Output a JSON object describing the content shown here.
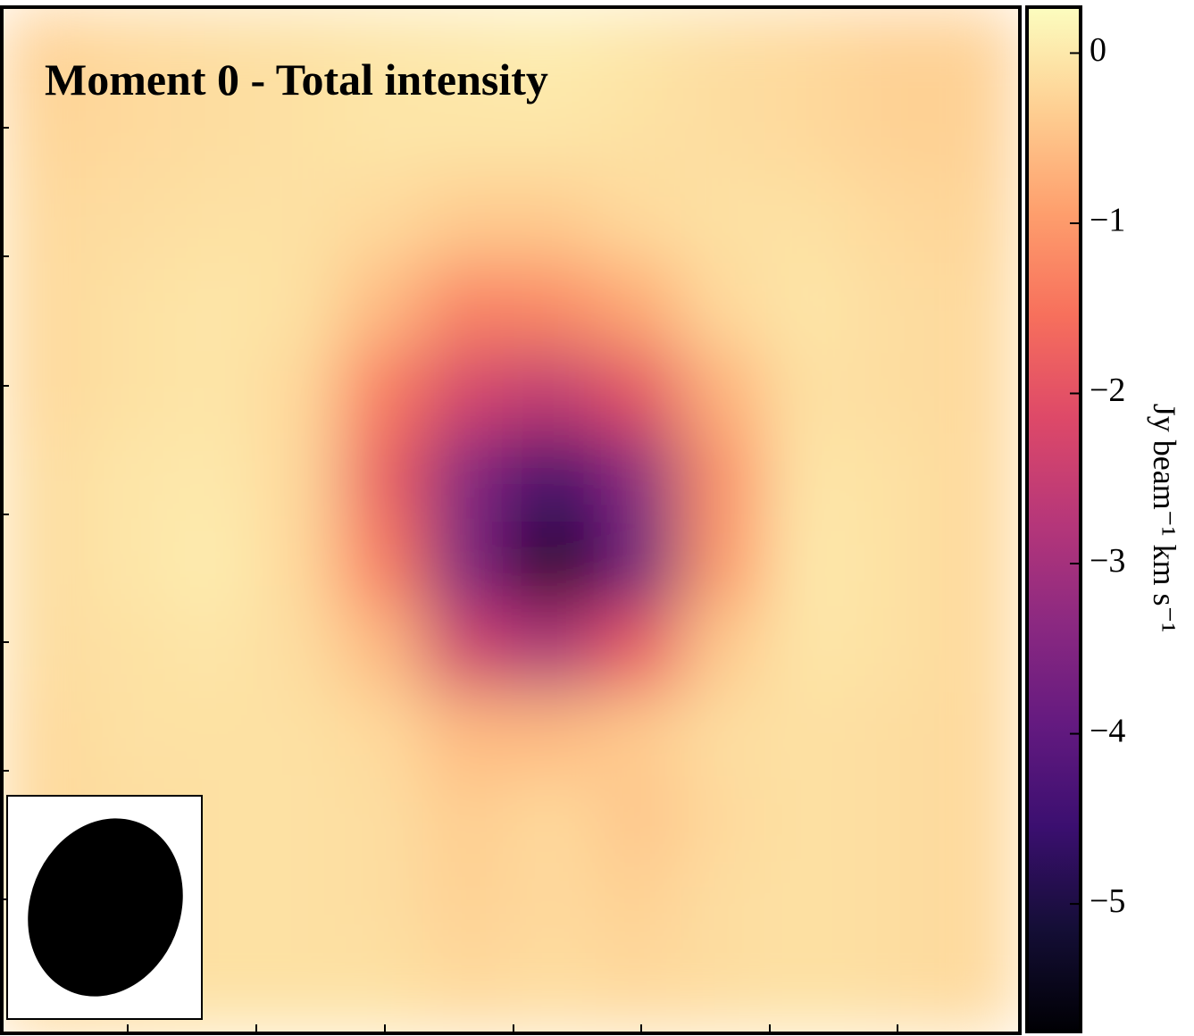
{
  "chart_data": {
    "type": "heatmap",
    "title": "Moment 0 - Total intensity",
    "colormap": "magma",
    "values": [
      [
        -0.3,
        -0.2,
        -0.15,
        -0.1,
        -0.05,
        0,
        0.05,
        -0.05,
        -0.15,
        -0.2,
        -0.3,
        -0.3
      ],
      [
        -0.25,
        -0.2,
        -0.15,
        -0.1,
        -0.05,
        -0.05,
        -0.05,
        -0.1,
        -0.15,
        -0.2,
        -0.3,
        -0.3
      ],
      [
        -0.2,
        -0.15,
        -0.1,
        -0.1,
        -0.2,
        -0.4,
        -0.4,
        -0.2,
        -0.1,
        -0.1,
        -0.2,
        -0.25
      ],
      [
        -0.2,
        -0.1,
        -0.05,
        -0.1,
        -0.6,
        -1.3,
        -1.2,
        -0.8,
        -0.2,
        -0.05,
        -0.15,
        -0.2
      ],
      [
        -0.2,
        -0.1,
        -0.05,
        -0.2,
        -1.4,
        -2.3,
        -2.6,
        -2.0,
        -0.7,
        -0.1,
        -0.15,
        -0.2
      ],
      [
        -0.15,
        -0.05,
        0,
        -0.2,
        -1.8,
        -3.5,
        -4.6,
        -3.4,
        -1.1,
        -0.05,
        -0.1,
        -0.2
      ],
      [
        -0.15,
        -0.05,
        0.05,
        -0.2,
        -1.4,
        -3.6,
        -5.7,
        -3.8,
        -1.0,
        0,
        -0.1,
        -0.2
      ],
      [
        -0.15,
        -0.1,
        -0.05,
        -0.15,
        -0.6,
        -2.4,
        -2.9,
        -1.9,
        -0.4,
        -0.05,
        -0.1,
        -0.2
      ],
      [
        -0.2,
        -0.1,
        -0.1,
        -0.1,
        -0.2,
        -0.6,
        -0.6,
        -0.4,
        -0.15,
        -0.1,
        -0.15,
        -0.2
      ],
      [
        -0.2,
        -0.15,
        -0.1,
        -0.1,
        -0.15,
        -0.35,
        -0.2,
        -0.45,
        -0.2,
        -0.1,
        -0.15,
        -0.2
      ],
      [
        -0.2,
        -0.15,
        -0.1,
        -0.1,
        -0.15,
        -0.3,
        -0.2,
        -0.3,
        -0.15,
        -0.1,
        -0.15,
        -0.2
      ],
      [
        -0.2,
        -0.15,
        -0.1,
        -0.1,
        -0.1,
        -0.2,
        -0.15,
        -0.2,
        -0.15,
        -0.1,
        -0.15,
        -0.2
      ]
    ],
    "clim": [
      -5.75,
      0.27
    ],
    "cticks": [
      {
        "value": 0,
        "label": "0"
      },
      {
        "value": -1,
        "label": "−1"
      },
      {
        "value": -2,
        "label": "−2"
      },
      {
        "value": -3,
        "label": "−3"
      },
      {
        "value": -4,
        "label": "−4"
      },
      {
        "value": -5,
        "label": "−5"
      }
    ],
    "colorbar_label": "Jy beam⁻¹ km s⁻¹"
  }
}
